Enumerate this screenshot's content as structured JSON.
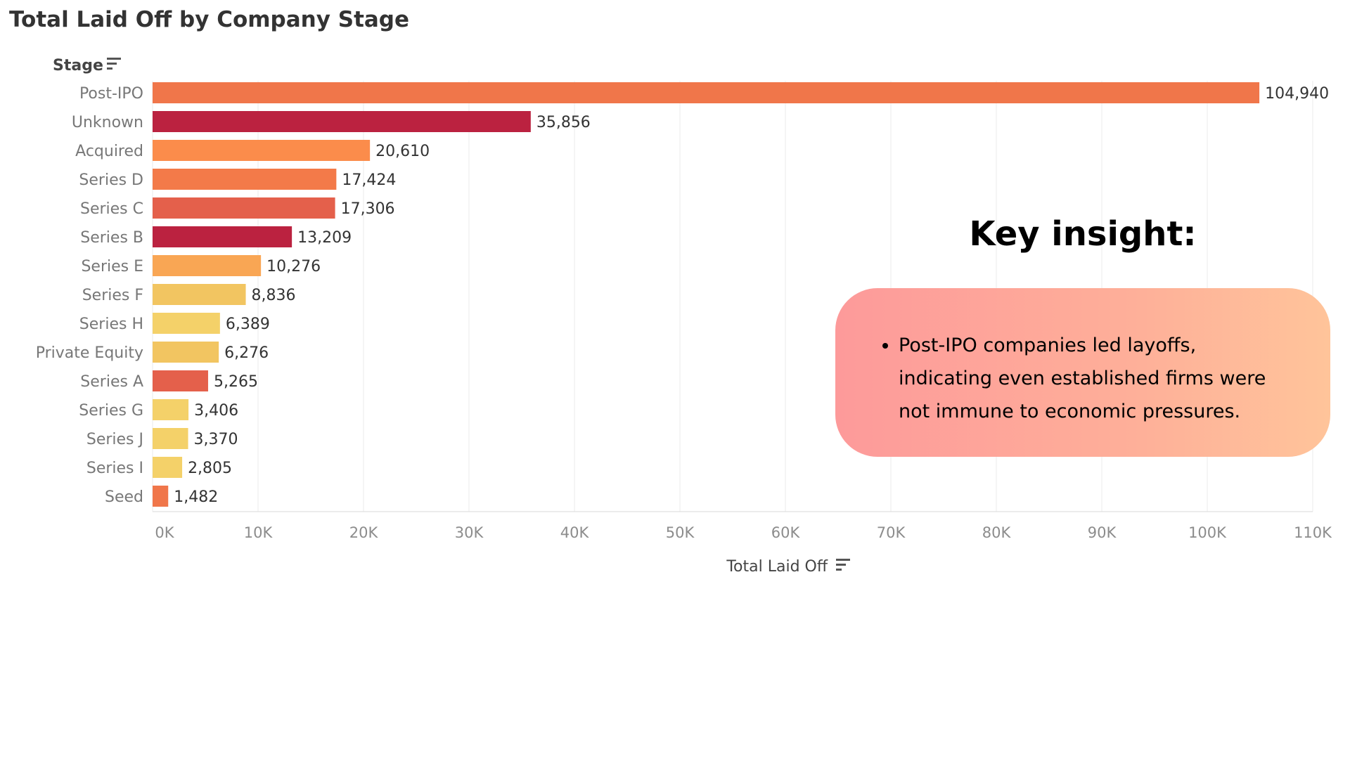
{
  "chart_data": {
    "type": "bar",
    "orientation": "horizontal",
    "title": "Total Laid Off by Company Stage",
    "ylabel": "Stage",
    "xlabel": "Total Laid Off",
    "categories": [
      "Post-IPO",
      "Unknown",
      "Acquired",
      "Series D",
      "Series C",
      "Series B",
      "Series E",
      "Series F",
      "Series H",
      "Private Equity",
      "Series A",
      "Series G",
      "Series J",
      "Series I",
      "Seed"
    ],
    "values": [
      104940,
      35856,
      20610,
      17424,
      17306,
      13209,
      10276,
      8836,
      6389,
      6276,
      5265,
      3406,
      3370,
      2805,
      1482
    ],
    "value_labels": [
      "104,940",
      "35,856",
      "20,610",
      "17,424",
      "17,306",
      "13,209",
      "10,276",
      "8,836",
      "6,389",
      "6,276",
      "5,265",
      "3,406",
      "3,370",
      "2,805",
      "1,482"
    ],
    "colors": [
      "#f0764a",
      "#bb2240",
      "#fb8c4b",
      "#f37a49",
      "#e4604b",
      "#bb2240",
      "#f9a654",
      "#f2c561",
      "#f4d169",
      "#f2c561",
      "#e4604b",
      "#f4d169",
      "#f4d169",
      "#f4d169",
      "#f0764a"
    ],
    "xlim": [
      0,
      110000
    ],
    "x_ticks": [
      "0K",
      "10K",
      "20K",
      "30K",
      "40K",
      "50K",
      "60K",
      "70K",
      "80K",
      "90K",
      "100K",
      "110K"
    ],
    "grid": true,
    "legend": "none"
  },
  "insight": {
    "heading": "Key insight:",
    "bullets": [
      "Post-IPO companies led layoffs, indicating even established firms were not immune to economic pressures."
    ]
  }
}
